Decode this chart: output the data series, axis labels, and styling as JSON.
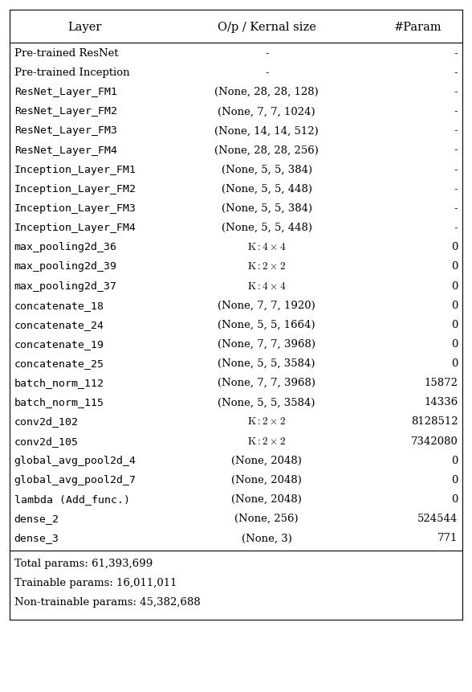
{
  "title_row": [
    "Layer",
    "O/p / Kernal size",
    "#Param"
  ],
  "rows": [
    [
      "Pre-trained ResNet",
      "-",
      "-"
    ],
    [
      "Pre-trained Inception",
      "-",
      "-"
    ],
    [
      "ResNet_Layer_FM1",
      "(None, 28, 28, 128)",
      "-"
    ],
    [
      "ResNet_Layer_FM2",
      "(None, 7, 7, 1024)",
      "-"
    ],
    [
      "ResNet_Layer_FM3",
      "(None, 14, 14, 512)",
      "-"
    ],
    [
      "ResNet_Layer_FM4",
      "(None, 28, 28, 256)",
      "-"
    ],
    [
      "Inception_Layer_FM1",
      "(None, 5, 5, 384)",
      "-"
    ],
    [
      "Inception_Layer_FM2",
      "(None, 5, 5, 448)",
      "-"
    ],
    [
      "Inception_Layer_FM3",
      "(None, 5, 5, 384)",
      "-"
    ],
    [
      "Inception_Layer_FM4",
      "(None, 5, 5, 448)",
      "-"
    ],
    [
      "max_pooling2d_36",
      "K : 4 x 4",
      "0"
    ],
    [
      "max_pooling2d_39",
      "K : 2 x 2",
      "0"
    ],
    [
      "max_pooling2d_37",
      "K : 4 x 4",
      "0"
    ],
    [
      "concatenate_18",
      "(None, 7, 7, 1920)",
      "0"
    ],
    [
      "concatenate_24",
      "(None, 5, 5, 1664)",
      "0"
    ],
    [
      "concatenate_19",
      "(None, 7, 7, 3968)",
      "0"
    ],
    [
      "concatenate_25",
      "(None, 5, 5, 3584)",
      "0"
    ],
    [
      "batch_norm_112",
      "(None, 7, 7, 3968)",
      "15872"
    ],
    [
      "batch_norm_115",
      "(None, 5, 5, 3584)",
      "14336"
    ],
    [
      "conv2d_102",
      "K : 2 x 2",
      "8128512"
    ],
    [
      "conv2d_105",
      "K : 2 x 2",
      "7342080"
    ],
    [
      "global_avg_pool2d_4",
      "(None, 2048)",
      "0"
    ],
    [
      "global_avg_pool2d_7",
      "(None, 2048)",
      "0"
    ],
    [
      "lambda (Add_func.)",
      "(None, 2048)",
      "0"
    ],
    [
      "dense_2",
      "(None, 256)",
      "524544"
    ],
    [
      "dense_3",
      "(None, 3)",
      "771"
    ]
  ],
  "footer": [
    "Total params: 61,393,699",
    "Trainable params: 16,011,011",
    "Non-trainable params: 45,382,688"
  ],
  "font_size": 9.5,
  "header_font_size": 10.5,
  "footer_font_size": 9.5,
  "background_color": "#ffffff",
  "text_color": "#000000",
  "fig_width": 5.88,
  "fig_height": 8.62,
  "dpi": 100
}
